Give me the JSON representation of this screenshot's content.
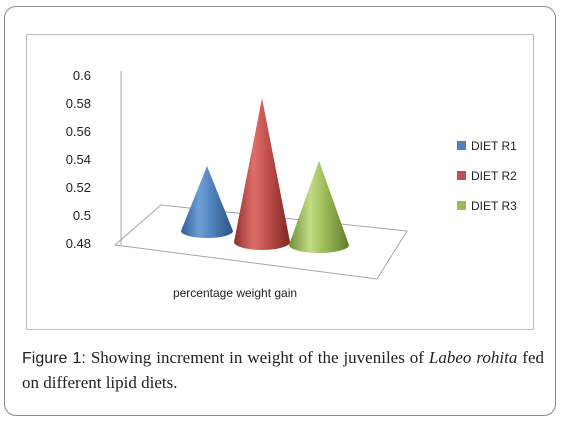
{
  "chart_data": {
    "type": "bar",
    "style": "3d-cone",
    "categories": [
      "percentage weight gain"
    ],
    "xlabel": "percentage weight gain",
    "ylabel": "",
    "title": "",
    "ylim": [
      0.48,
      0.6
    ],
    "yticks": [
      "0.6",
      "0.58",
      "0.56",
      "0.54",
      "0.52",
      "0.5",
      "0.48"
    ],
    "legend_position": "right",
    "series": [
      {
        "name": "DIET R1",
        "values": [
          0.525
        ],
        "color": "#4f81bd"
      },
      {
        "name": "DIET R2",
        "values": [
          0.58
        ],
        "color": "#c0504d"
      },
      {
        "name": "DIET R3",
        "values": [
          0.535
        ],
        "color": "#9bbb59"
      }
    ]
  },
  "caption": {
    "label": "Figure 1:",
    "text_before": " Showing increment in weight of the juveniles of ",
    "italic": "Labeo rohita",
    "text_after": " fed on different lipid diets."
  }
}
